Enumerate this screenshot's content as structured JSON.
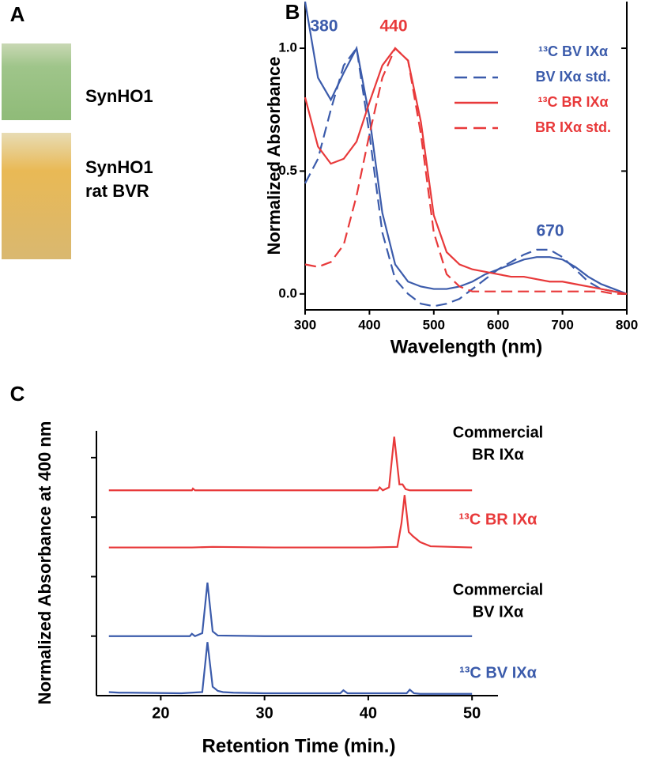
{
  "panel_labels": [
    "A",
    "B",
    "C"
  ],
  "photos": [
    {
      "label": [
        "SynHO1"
      ]
    },
    {
      "label": [
        "SynHO1",
        "rat BVR"
      ]
    }
  ],
  "chart_data": [
    {
      "type": "line",
      "xlabel": "Wavelength (nm)",
      "ylabel": "Normalized Absorbance",
      "x": [
        300,
        320,
        340,
        360,
        380,
        400,
        420,
        440,
        460,
        480,
        500,
        520,
        540,
        560,
        580,
        600,
        620,
        640,
        660,
        680,
        700,
        720,
        740,
        760,
        780,
        800
      ],
      "xlim": [
        300,
        800
      ],
      "ylim": [
        -0.065,
        1.19
      ],
      "xticks": [
        300,
        400,
        500,
        600,
        700,
        800
      ],
      "yticks": [
        {
          "value": 0,
          "label": "0.0"
        },
        {
          "value": 0.5,
          "label": "0.5"
        },
        {
          "value": 1,
          "label": "1.0"
        }
      ],
      "legend": "upper right",
      "annotations": [
        {
          "text": "380",
          "color": "#3b5bab"
        },
        {
          "text": "440",
          "color": "#e8393a"
        },
        {
          "text": "670",
          "color": "#3b5bab"
        }
      ],
      "series": [
        {
          "name": "¹³C BV IXα",
          "color": "#3b5bab",
          "dash": false,
          "values": [
            1.19,
            0.88,
            0.79,
            0.9,
            1.0,
            0.72,
            0.33,
            0.12,
            0.05,
            0.03,
            0.02,
            0.02,
            0.03,
            0.05,
            0.08,
            0.1,
            0.12,
            0.14,
            0.15,
            0.15,
            0.14,
            0.11,
            0.07,
            0.04,
            0.02,
            0.0
          ]
        },
        {
          "name": "BV IXα std.",
          "color": "#3b5bab",
          "dash": true,
          "values": [
            0.45,
            0.55,
            0.75,
            0.93,
            1.0,
            0.65,
            0.25,
            0.06,
            0.0,
            -0.04,
            -0.05,
            -0.04,
            -0.02,
            0.02,
            0.06,
            0.1,
            0.13,
            0.16,
            0.18,
            0.18,
            0.15,
            0.1,
            0.05,
            0.02,
            0.01,
            0.0
          ]
        },
        {
          "name": "¹³C BR IXα",
          "color": "#e8393a",
          "dash": false,
          "values": [
            0.8,
            0.6,
            0.53,
            0.55,
            0.62,
            0.78,
            0.93,
            1.0,
            0.95,
            0.7,
            0.32,
            0.17,
            0.12,
            0.1,
            0.09,
            0.08,
            0.07,
            0.07,
            0.06,
            0.05,
            0.05,
            0.04,
            0.03,
            0.02,
            0.01,
            0.0
          ]
        },
        {
          "name": "BR IXα std.",
          "color": "#e8393a",
          "dash": true,
          "values": [
            0.12,
            0.11,
            0.13,
            0.2,
            0.4,
            0.65,
            0.88,
            1.0,
            0.95,
            0.65,
            0.25,
            0.08,
            0.03,
            0.01,
            0.01,
            0.01,
            0.01,
            0.01,
            0.01,
            0.01,
            0.01,
            0.01,
            0.01,
            0.01,
            0.0,
            0.0
          ]
        }
      ]
    },
    {
      "type": "line",
      "xlabel": "Retention Time (min.)",
      "ylabel": "Normalized Absorbance at 400 nm",
      "xlim": [
        13.8,
        52.5
      ],
      "ylim": [
        0,
        4.45
      ],
      "xticks": [
        20,
        30,
        40,
        50
      ],
      "yticks": [
        1,
        2,
        3,
        4
      ],
      "series": [
        {
          "label": [
            "Commercial",
            "BR IXα"
          ],
          "color": "#e8393a",
          "x": [
            15,
            23,
            23.1,
            23.3,
            30,
            40.9,
            41.1,
            41.4,
            42,
            42.5,
            43,
            43.3,
            43.6,
            44,
            50
          ],
          "values": [
            3.45,
            3.45,
            3.48,
            3.45,
            3.45,
            3.45,
            3.5,
            3.45,
            3.5,
            4.35,
            3.55,
            3.55,
            3.47,
            3.45,
            3.45
          ]
        },
        {
          "label": [
            "¹³C BR IXα"
          ],
          "color": "#e8393a",
          "x": [
            15,
            23,
            25,
            31,
            40,
            42.8,
            43.2,
            43.5,
            43.9,
            44.3,
            45,
            46,
            50
          ],
          "values": [
            2.49,
            2.49,
            2.5,
            2.49,
            2.49,
            2.5,
            2.9,
            3.37,
            2.75,
            2.68,
            2.58,
            2.51,
            2.49
          ]
        },
        {
          "label": [
            "Commercial",
            "BV IXα"
          ],
          "color": "#3b5bab",
          "x": [
            15,
            22.8,
            23,
            23.3,
            24,
            24.5,
            25,
            25.5,
            30,
            40,
            50
          ],
          "values": [
            1.0,
            1.0,
            1.04,
            1.0,
            1.05,
            1.9,
            1.08,
            1.01,
            1.0,
            1.0,
            1.0
          ]
        },
        {
          "label": [
            "¹³C BV IXα"
          ],
          "color": "#3b5bab",
          "x": [
            15,
            16,
            17,
            22,
            24,
            24.5,
            25,
            25.5,
            26,
            27,
            30,
            37.3,
            37.6,
            38,
            43.7,
            44,
            44.4,
            45,
            50
          ],
          "values": [
            0.06,
            0.05,
            0.05,
            0.04,
            0.06,
            0.9,
            0.15,
            0.08,
            0.06,
            0.05,
            0.04,
            0.04,
            0.09,
            0.04,
            0.04,
            0.1,
            0.04,
            0.03,
            0.03
          ]
        }
      ]
    }
  ]
}
